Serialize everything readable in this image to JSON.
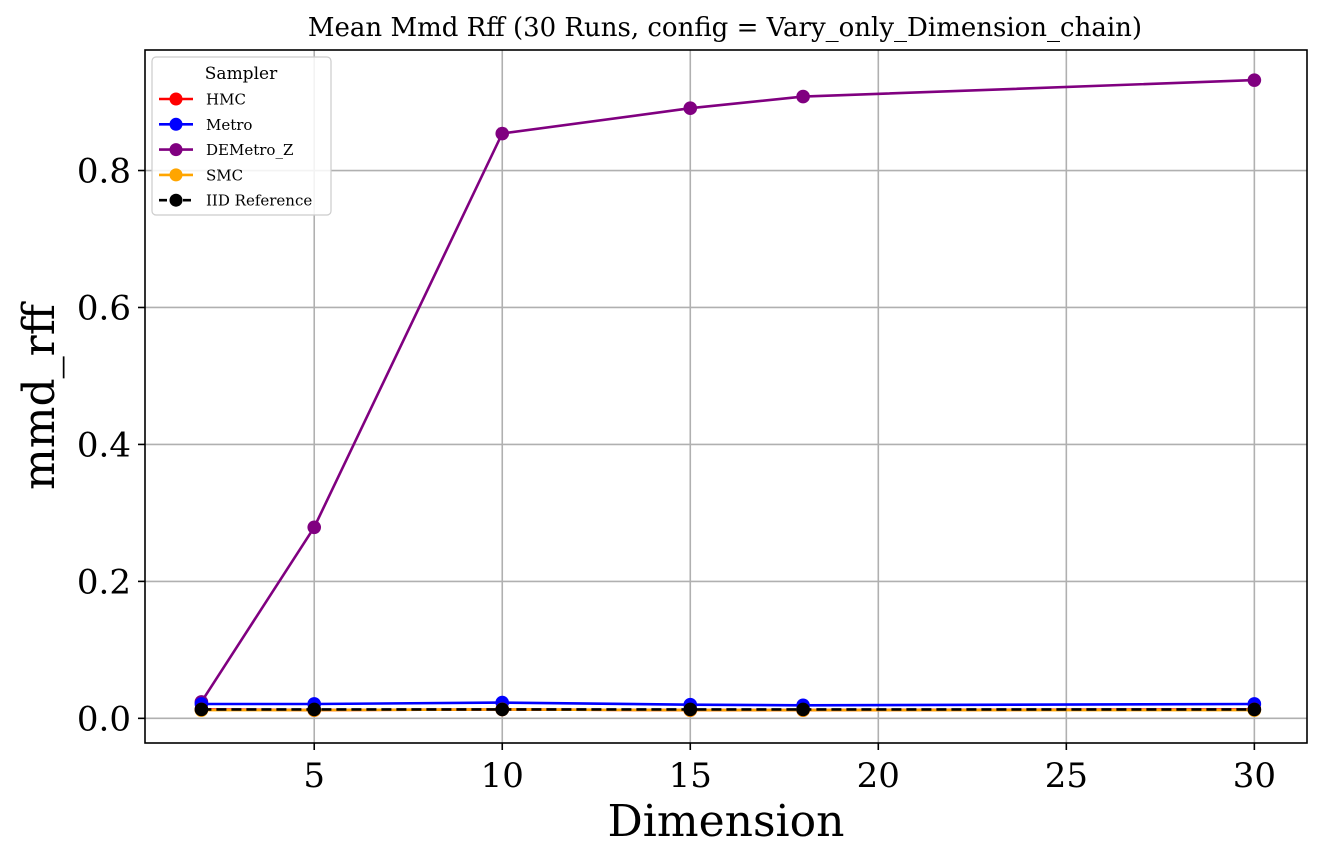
{
  "chart_data": {
    "type": "line",
    "title": "Mean Mmd Rff (30 Runs, config = Vary_only_Dimension_chain)",
    "xlabel": "Dimension",
    "ylabel": "mmd_rff",
    "xlim": [
      0.5,
      31.4
    ],
    "ylim": [
      -0.036,
      0.976
    ],
    "xticks": [
      "5",
      "10",
      "15",
      "20",
      "25",
      "30"
    ],
    "yticks": [
      "0.0",
      "0.2",
      "0.4",
      "0.6",
      "0.8"
    ],
    "grid": true,
    "legend": {
      "title": "Sampler",
      "placement": "top-left"
    },
    "x": [
      2,
      5,
      10,
      15,
      18,
      30
    ],
    "series": [
      {
        "name": "HMC",
        "color": "#ff0000",
        "style": "solid",
        "values": [
          0.013,
          0.012,
          0.013,
          0.012,
          0.012,
          0.013
        ]
      },
      {
        "name": "Metro",
        "color": "#0000ff",
        "style": "solid",
        "values": [
          0.021,
          0.021,
          0.023,
          0.02,
          0.019,
          0.021
        ]
      },
      {
        "name": "DEMetro_Z",
        "color": "#800080",
        "style": "solid",
        "values": [
          0.024,
          0.279,
          0.854,
          0.891,
          0.908,
          0.932
        ]
      },
      {
        "name": "SMC",
        "color": "#ffa500",
        "style": "solid",
        "values": [
          0.012,
          0.012,
          0.013,
          0.012,
          0.012,
          0.012
        ]
      },
      {
        "name": "IID Reference",
        "color": "#000000",
        "style": "dashed",
        "values": [
          0.013,
          0.013,
          0.013,
          0.013,
          0.013,
          0.013
        ]
      }
    ]
  }
}
